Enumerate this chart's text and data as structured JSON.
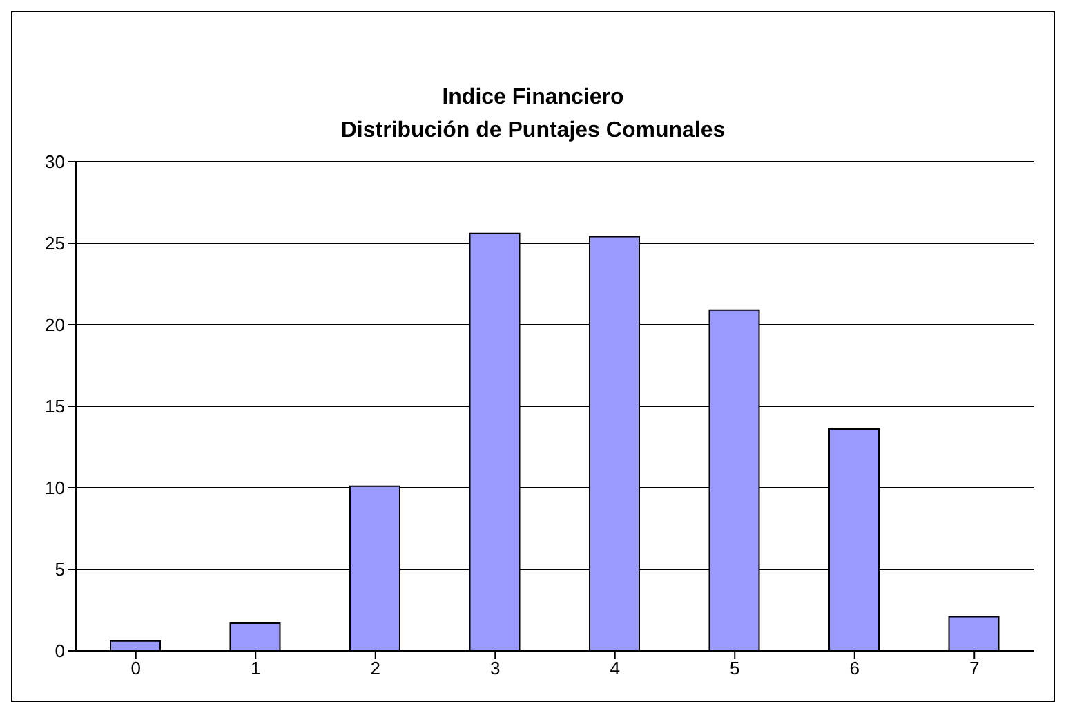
{
  "chart_data": {
    "type": "bar",
    "title": "Indice Financiero\nDistribución de Puntajes Comunales",
    "categories": [
      "0",
      "1",
      "2",
      "3",
      "4",
      "5",
      "6",
      "7"
    ],
    "values": [
      0.6,
      1.7,
      10.1,
      25.6,
      25.4,
      20.9,
      13.6,
      2.1
    ],
    "color": "#9999ff",
    "ylim": [
      0,
      30
    ],
    "yticks": [
      0,
      5,
      10,
      15,
      20,
      25,
      30
    ],
    "grid": "y"
  }
}
